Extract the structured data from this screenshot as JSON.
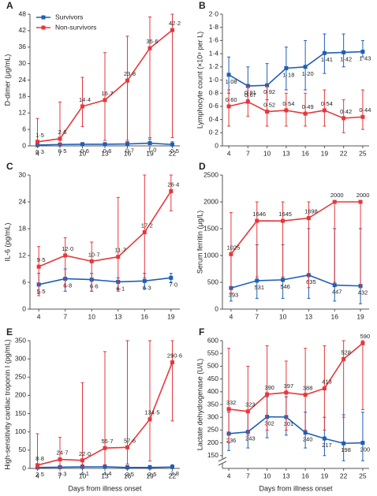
{
  "chart_data": [
    {
      "type": "line",
      "label": "A",
      "ylabel": "D-dimer (μg/mL)",
      "legend": "top-left",
      "x": [
        4,
        7,
        10,
        13,
        16,
        19,
        22
      ],
      "xlim": [
        3,
        23
      ],
      "xticks": [
        4,
        7,
        10,
        13,
        16,
        19,
        22
      ],
      "ylim": [
        0,
        48
      ],
      "yticks": [
        0,
        6,
        12,
        18,
        24,
        30,
        36,
        42,
        48
      ],
      "series": [
        {
          "name": "Survivors",
          "color": "#1f5fb4",
          "values": [
            0.3,
            0.5,
            0.6,
            0.6,
            0.7,
            1.0,
            0.5
          ],
          "value_labels": [
            "0·3",
            "0·5",
            "0·6",
            "0·6",
            "0·7",
            "1·0",
            "0·5"
          ],
          "low": [
            0.1,
            0.2,
            0.3,
            0.3,
            0.3,
            0.5,
            0.3
          ],
          "high": [
            0.8,
            1.0,
            1.2,
            1.2,
            1.5,
            2.5,
            1.5
          ]
        },
        {
          "name": "Non-survivors",
          "color": "#e5383b",
          "values": [
            1.5,
            2.6,
            14.4,
            16.7,
            23.8,
            35.6,
            42.2
          ],
          "value_labels": [
            "1·5",
            "2·6",
            "14·4",
            "16·7",
            "23·8",
            "35·6",
            "42·2"
          ],
          "low": [
            0.3,
            0.5,
            7,
            2,
            2,
            3,
            3
          ],
          "high": [
            10,
            16,
            25,
            34,
            40,
            47,
            48
          ]
        }
      ]
    },
    {
      "type": "line",
      "label": "B",
      "ylabel": "Lymphocyte count (×10⁹ per L)",
      "x": [
        4,
        7,
        10,
        13,
        16,
        19,
        22,
        25
      ],
      "xlim": [
        3,
        26
      ],
      "xticks": [
        4,
        7,
        10,
        13,
        16,
        19,
        22,
        25
      ],
      "ylim": [
        0,
        2.0
      ],
      "yticks": [
        0,
        {
          "value": 0.2,
          "label": "0·2"
        },
        {
          "value": 0.4,
          "label": "0·4"
        },
        {
          "value": 0.6,
          "label": "0·6"
        },
        {
          "value": 0.8,
          "label": "0·8"
        },
        {
          "value": 1.0,
          "label": "1·0"
        },
        {
          "value": 1.2,
          "label": "1·2"
        },
        {
          "value": 1.4,
          "label": "1·4"
        },
        {
          "value": 1.6,
          "label": "1·6"
        },
        {
          "value": 1.8,
          "label": "1·8"
        },
        {
          "value": 2.0,
          "label": "2·0"
        }
      ],
      "series": [
        {
          "color": "#1f5fb4",
          "values": [
            1.08,
            0.91,
            0.92,
            1.18,
            1.2,
            1.41,
            1.42,
            1.43
          ],
          "value_labels": [
            "1·08",
            "0·91",
            "0·92",
            "1·18",
            "1·20",
            "1·41",
            "1·42",
            "1·43"
          ],
          "low": [
            0.8,
            0.7,
            0.7,
            0.85,
            0.85,
            1.1,
            1.2,
            1.35
          ],
          "high": [
            1.35,
            1.2,
            1.25,
            1.5,
            1.6,
            1.7,
            1.7,
            1.6
          ]
        },
        {
          "color": "#e5383b",
          "values": [
            0.6,
            0.67,
            0.52,
            0.54,
            0.49,
            0.54,
            0.42,
            0.44
          ],
          "value_labels": [
            "0·60",
            "0·67",
            "0·52",
            "0·54",
            "0·49",
            "0·54",
            "0·42",
            "0·44"
          ],
          "low": [
            0.3,
            0.45,
            0.3,
            0.3,
            0.3,
            0.3,
            0.2,
            0.25
          ],
          "high": [
            0.85,
            0.9,
            0.9,
            0.8,
            0.8,
            0.85,
            0.7,
            0.85
          ]
        }
      ]
    },
    {
      "type": "line",
      "label": "C",
      "ylabel": "IL-6 (pg/mL)",
      "x": [
        4,
        7,
        10,
        13,
        16,
        19
      ],
      "xlim": [
        3,
        20
      ],
      "xticks": [
        4,
        7,
        10,
        13,
        16,
        19
      ],
      "ylim": [
        0,
        30
      ],
      "yticks": [
        0,
        6,
        12,
        18,
        24,
        30
      ],
      "series": [
        {
          "color": "#1f5fb4",
          "values": [
            5.5,
            6.8,
            6.6,
            6.1,
            6.3,
            7.0
          ],
          "value_labels": [
            "5·5",
            "6·8",
            "6·6",
            "6·1",
            "6·3",
            "7·0"
          ],
          "low": [
            3.5,
            4,
            4,
            4.5,
            4.5,
            6
          ],
          "high": [
            8,
            9,
            8,
            7,
            8,
            8
          ]
        },
        {
          "color": "#e5383b",
          "values": [
            9.5,
            12.0,
            10.7,
            11.7,
            17.2,
            26.4
          ],
          "value_labels": [
            "9·5",
            "12·0",
            "10·7",
            "11·7",
            "17·2",
            "26·4"
          ],
          "low": [
            3,
            5,
            4,
            4,
            7,
            22
          ],
          "high": [
            14,
            16,
            15,
            25,
            30,
            30
          ]
        }
      ]
    },
    {
      "type": "line",
      "label": "D",
      "ylabel": "Serum ferritin (μg/L)",
      "x": [
        4,
        7,
        10,
        13,
        16,
        19
      ],
      "xlim": [
        3,
        20
      ],
      "xticks": [
        4,
        7,
        10,
        13,
        16,
        19
      ],
      "ylim": [
        0,
        2500
      ],
      "yticks": [
        0,
        500,
        1000,
        1500,
        2000,
        2500
      ],
      "series": [
        {
          "color": "#1f5fb4",
          "values": [
            393,
            531,
            546,
            635,
            447,
            432
          ],
          "low": [
            150,
            200,
            200,
            200,
            150,
            100
          ],
          "high": [
            1000,
            1200,
            1200,
            1500,
            1500,
            1500
          ]
        },
        {
          "color": "#e5383b",
          "values": [
            1025,
            1646,
            1645,
            1698,
            2000,
            2000
          ],
          "low": [
            300,
            600,
            600,
            400,
            500,
            400
          ],
          "high": [
            1800,
            2000,
            2000,
            2000,
            2000,
            2000
          ]
        }
      ]
    },
    {
      "type": "line",
      "label": "E",
      "ylabel": "High-sensitivity cardiac troponin I (pg/mL)",
      "xlabel": "Days from illness onset",
      "x": [
        4,
        7,
        10,
        13,
        16,
        19,
        22
      ],
      "xlim": [
        3,
        23
      ],
      "xticks": [
        4,
        7,
        10,
        13,
        16,
        19,
        22
      ],
      "ylim": [
        0,
        350
      ],
      "yticks": [
        0,
        50,
        100,
        150,
        200,
        250,
        300,
        350
      ],
      "series": [
        {
          "color": "#1f5fb4",
          "values": [
            2.5,
            3.3,
            4.1,
            4.4,
            2.5,
            2.5,
            3.8
          ],
          "value_labels": [
            "2·5",
            "3·3",
            "4·1",
            "4·4",
            "2·5",
            "2·5",
            "3·8"
          ],
          "low": [
            1,
            1,
            1,
            1,
            1,
            1,
            1
          ],
          "high": [
            6,
            8,
            10,
            10,
            8,
            8,
            10
          ]
        },
        {
          "color": "#e5383b",
          "values": [
            8.8,
            24.7,
            22.0,
            55.7,
            57.6,
            134.5,
            290.6
          ],
          "value_labels": [
            "8·8",
            "24·7",
            "22·0",
            "55·7",
            "57·6",
            "134·5",
            "290·6"
          ],
          "low": [
            0,
            0,
            3,
            10,
            12,
            20,
            130
          ],
          "high": [
            95,
            85,
            235,
            320,
            350,
            350,
            350
          ]
        }
      ]
    },
    {
      "type": "line",
      "label": "F",
      "ylabel": "Lactate dehydrogenase (U/L)",
      "xlabel": "Days from illness onset",
      "axis_break": true,
      "x": [
        4,
        7,
        10,
        13,
        16,
        19,
        22,
        25
      ],
      "xlim": [
        3,
        26
      ],
      "xticks": [
        4,
        7,
        10,
        13,
        16,
        19,
        22,
        25
      ],
      "ylim": [
        100,
        600
      ],
      "yticks": [
        150,
        200,
        250,
        300,
        350,
        400,
        450,
        500,
        550,
        600
      ],
      "series": [
        {
          "color": "#1f5fb4",
          "values": [
            236,
            243,
            302,
            301,
            240,
            217,
            198,
            200
          ],
          "low": [
            170,
            180,
            220,
            230,
            180,
            150,
            130,
            130
          ],
          "high": [
            320,
            320,
            380,
            380,
            320,
            300,
            310,
            320
          ]
        },
        {
          "color": "#e5383b",
          "values": [
            332,
            323,
            390,
            397,
            388,
            413,
            528,
            590
          ],
          "low": [
            200,
            230,
            250,
            250,
            250,
            250,
            300,
            330
          ],
          "high": [
            570,
            500,
            580,
            520,
            570,
            580,
            600,
            600
          ]
        }
      ]
    }
  ]
}
